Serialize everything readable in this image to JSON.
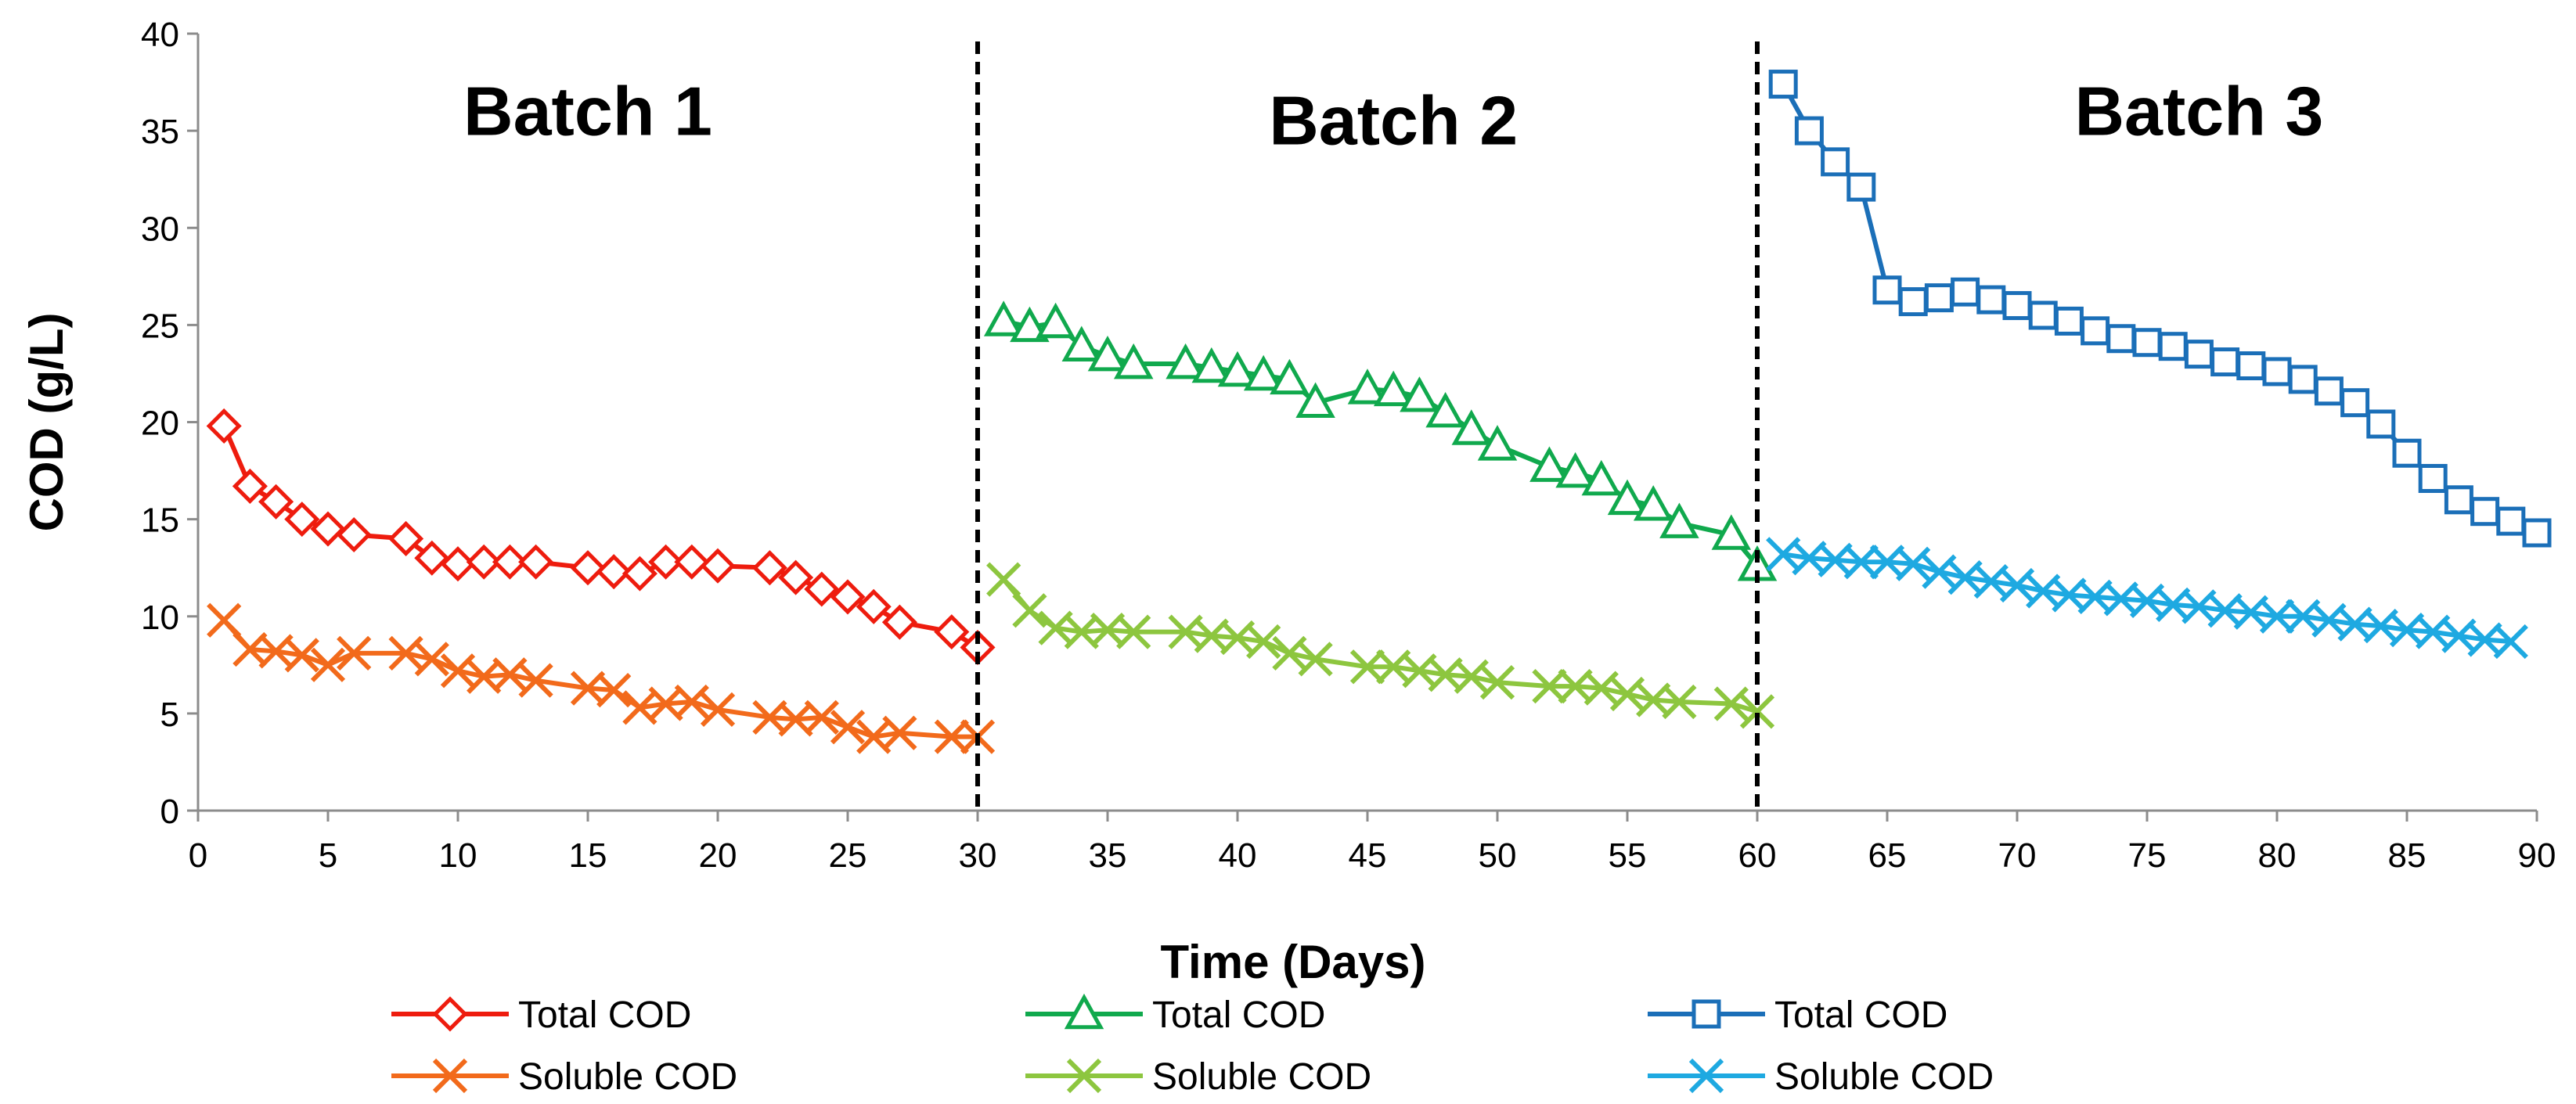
{
  "chart_data": {
    "type": "line",
    "xlabel": "Time (Days)",
    "ylabel": "COD (g/L)",
    "xlim": [
      0,
      90
    ],
    "ylim": [
      0,
      40
    ],
    "xticks": [
      0,
      5,
      10,
      15,
      20,
      25,
      30,
      35,
      40,
      45,
      50,
      55,
      60,
      65,
      70,
      75,
      80,
      85,
      90
    ],
    "yticks": [
      0,
      5,
      10,
      15,
      20,
      25,
      30,
      35,
      40
    ],
    "grid": false,
    "legend_position": "bottom",
    "batch_dividers": [
      30,
      60
    ],
    "batch_labels": [
      {
        "text": "Batch 1",
        "x": 15,
        "y": 36
      },
      {
        "text": "Batch 2",
        "x": 46,
        "y": 35.5
      },
      {
        "text": "Batch 3",
        "x": 77,
        "y": 36
      }
    ],
    "series": [
      {
        "name": "Total COD",
        "batch": "Batch 1",
        "color": "#ee1c0e",
        "marker": "diamond",
        "x": [
          1,
          2,
          3,
          4,
          5,
          6,
          8,
          9,
          10,
          11,
          12,
          13,
          15,
          16,
          17,
          18,
          19,
          20,
          22,
          23,
          24,
          25,
          26,
          27,
          29,
          30
        ],
        "y": [
          19.8,
          16.7,
          15.9,
          15.0,
          14.5,
          14.2,
          14.0,
          13.0,
          12.7,
          12.8,
          12.8,
          12.8,
          12.5,
          12.3,
          12.2,
          12.8,
          12.8,
          12.6,
          12.5,
          12.0,
          11.4,
          11.0,
          10.5,
          9.7,
          9.2,
          8.4
        ]
      },
      {
        "name": "Soluble COD",
        "batch": "Batch 1",
        "color": "#f26a1b",
        "marker": "x",
        "x": [
          1,
          2,
          3,
          4,
          5,
          6,
          8,
          9,
          10,
          11,
          12,
          13,
          15,
          16,
          17,
          18,
          19,
          20,
          22,
          23,
          24,
          25,
          26,
          27,
          29,
          30
        ],
        "y": [
          9.8,
          8.3,
          8.2,
          8.0,
          7.5,
          8.1,
          8.1,
          7.8,
          7.2,
          6.9,
          7.0,
          6.7,
          6.3,
          6.2,
          5.3,
          5.5,
          5.6,
          5.2,
          4.8,
          4.7,
          4.8,
          4.3,
          3.8,
          4.0,
          3.8,
          3.8
        ]
      },
      {
        "name": "Total COD",
        "batch": "Batch 2",
        "color": "#10a94d",
        "marker": "triangle",
        "x": [
          31,
          32,
          33,
          34,
          35,
          36,
          38,
          39,
          40,
          41,
          42,
          43,
          45,
          46,
          47,
          48,
          49,
          50,
          52,
          53,
          54,
          55,
          56,
          57,
          59,
          60
        ],
        "y": [
          25.2,
          24.9,
          25.1,
          23.9,
          23.4,
          23.0,
          23.0,
          22.8,
          22.6,
          22.4,
          22.2,
          21.0,
          21.7,
          21.6,
          21.3,
          20.5,
          19.6,
          18.8,
          17.7,
          17.4,
          17.0,
          16.0,
          15.7,
          14.8,
          14.2,
          12.6
        ]
      },
      {
        "name": "Soluble COD",
        "batch": "Batch 2",
        "color": "#8dc63f",
        "marker": "x",
        "x": [
          31,
          32,
          33,
          34,
          35,
          36,
          38,
          39,
          40,
          41,
          42,
          43,
          45,
          46,
          47,
          48,
          49,
          50,
          52,
          53,
          54,
          55,
          56,
          57,
          59,
          60
        ],
        "y": [
          11.9,
          10.3,
          9.4,
          9.2,
          9.3,
          9.2,
          9.2,
          9.0,
          8.9,
          8.7,
          8.1,
          7.8,
          7.4,
          7.4,
          7.2,
          7.0,
          6.9,
          6.6,
          6.4,
          6.4,
          6.3,
          6.0,
          5.7,
          5.6,
          5.5,
          5.1
        ]
      },
      {
        "name": "Total COD",
        "batch": "Batch 3",
        "color": "#1b6fb8",
        "marker": "square",
        "x": [
          61,
          62,
          63,
          64,
          65,
          66,
          67,
          68,
          69,
          70,
          71,
          72,
          73,
          74,
          75,
          76,
          77,
          78,
          79,
          80,
          81,
          82,
          83,
          84,
          85,
          86,
          87,
          88,
          89,
          90
        ],
        "y": [
          37.4,
          35.0,
          33.4,
          32.1,
          26.8,
          26.2,
          26.4,
          26.7,
          26.3,
          26.0,
          25.5,
          25.2,
          24.7,
          24.3,
          24.1,
          23.9,
          23.5,
          23.1,
          22.9,
          22.6,
          22.2,
          21.6,
          21.0,
          19.9,
          18.4,
          17.1,
          16.0,
          15.4,
          14.9,
          14.3
        ]
      },
      {
        "name": "Soluble COD",
        "batch": "Batch 3",
        "color": "#1ea9e1",
        "marker": "x",
        "x": [
          61,
          62,
          63,
          64,
          65,
          66,
          67,
          68,
          69,
          70,
          71,
          72,
          73,
          74,
          75,
          76,
          77,
          78,
          79,
          80,
          81,
          82,
          83,
          84,
          85,
          86,
          87,
          88,
          89
        ],
        "y": [
          13.2,
          13.0,
          12.9,
          12.8,
          12.8,
          12.7,
          12.3,
          12.0,
          11.8,
          11.6,
          11.3,
          11.1,
          11.0,
          10.9,
          10.8,
          10.6,
          10.5,
          10.3,
          10.2,
          10.0,
          10.0,
          9.8,
          9.6,
          9.5,
          9.3,
          9.2,
          9.0,
          8.8,
          8.7
        ]
      }
    ]
  }
}
